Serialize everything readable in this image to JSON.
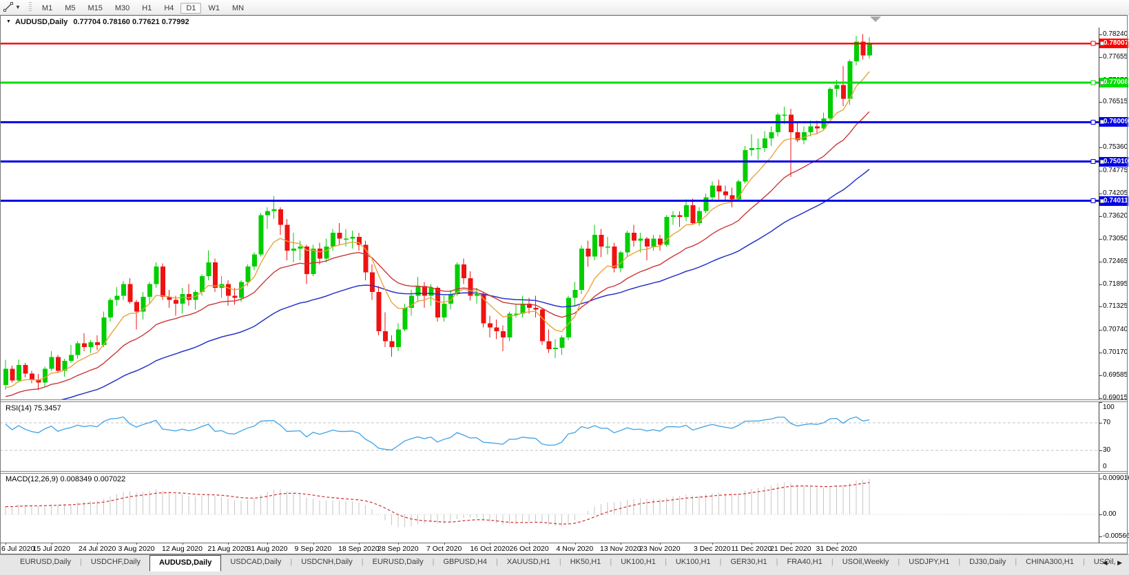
{
  "toolbar": {
    "timeframes": [
      "M1",
      "M5",
      "M15",
      "M30",
      "H1",
      "H4",
      "D1",
      "W1",
      "MN"
    ],
    "active_timeframe": "D1"
  },
  "window": {
    "symbol_label": "AUDUSD,Daily",
    "ohlc_text": "0.77704 0.78160 0.77621 0.77992"
  },
  "chart_data": {
    "type": "candlestick",
    "symbol": "AUDUSD",
    "period": "Daily",
    "ohlc_display": {
      "open": "0.77704",
      "high": "0.78160",
      "low": "0.77621",
      "close": "0.77992"
    },
    "colors": {
      "bull": "#00CE00",
      "bear": "#EF1212",
      "ma_fast": "#E8A33D",
      "ma_mid": "#CC3636",
      "ma_slow": "#2733C8",
      "hline_red": "#FF0000",
      "hline_green": "#00DD00",
      "hline_blue": "#0000E6",
      "rsi_line": "#4AA7E6",
      "macd_hist": "#C6C6C6",
      "macd_signal": "#D23B3B"
    },
    "hlines": [
      {
        "price": 0.78007,
        "label": "0.78007",
        "color": "#FF0000",
        "width": 2.5
      },
      {
        "price": 0.77008,
        "label": "0.77008",
        "color": "#00DD00",
        "width": 3
      },
      {
        "price": 0.76009,
        "label": "0.76009",
        "color": "#0000E6",
        "width": 3
      },
      {
        "price": 0.7501,
        "label": "0.75010",
        "color": "#0000E6",
        "width": 3
      },
      {
        "price": 0.74011,
        "label": "0.74011",
        "color": "#0000E6",
        "width": 3
      }
    ],
    "price_ticks": [
      "0.78240",
      "0.77655",
      "0.77070",
      "0.76515",
      "0.75930",
      "0.75360",
      "0.74775",
      "0.74205",
      "0.73620",
      "0.73050",
      "0.72465",
      "0.71895",
      "0.71325",
      "0.70740",
      "0.70170",
      "0.69585",
      "0.69015"
    ],
    "date_ticks": [
      {
        "label": "6 Jul 2020",
        "i": 0
      },
      {
        "label": "15 Jul 2020",
        "i": 7
      },
      {
        "label": "24 Jul 2020",
        "i": 14
      },
      {
        "label": "3 Aug 2020",
        "i": 20
      },
      {
        "label": "12 Aug 2020",
        "i": 27
      },
      {
        "label": "21 Aug 2020",
        "i": 34
      },
      {
        "label": "31 Aug 2020",
        "i": 40
      },
      {
        "label": "9 Sep 2020",
        "i": 47
      },
      {
        "label": "18 Sep 2020",
        "i": 54
      },
      {
        "label": "28 Sep 2020",
        "i": 60
      },
      {
        "label": "7 Oct 2020",
        "i": 67
      },
      {
        "label": "16 Oct 2020",
        "i": 74
      },
      {
        "label": "26 Oct 2020",
        "i": 80
      },
      {
        "label": "4 Nov 2020",
        "i": 87
      },
      {
        "label": "13 Nov 2020",
        "i": 94
      },
      {
        "label": "23 Nov 2020",
        "i": 100
      },
      {
        "label": "3 Dec 2020",
        "i": 108
      },
      {
        "label": "11 Dec 2020",
        "i": 114
      },
      {
        "label": "21 Dec 2020",
        "i": 120
      },
      {
        "label": "31 Dec 2020",
        "i": 127
      }
    ],
    "candles": [
      [
        0.6934,
        0.6998,
        0.6922,
        0.6975
      ],
      [
        0.6975,
        0.6983,
        0.694,
        0.6945
      ],
      [
        0.6945,
        0.6999,
        0.694,
        0.6985
      ],
      [
        0.6985,
        0.699,
        0.6953,
        0.6963
      ],
      [
        0.6963,
        0.697,
        0.6938,
        0.6948
      ],
      [
        0.6948,
        0.6962,
        0.6921,
        0.694
      ],
      [
        0.694,
        0.698,
        0.693,
        0.6975
      ],
      [
        0.6975,
        0.702,
        0.697,
        0.7005
      ],
      [
        0.7005,
        0.701,
        0.6965,
        0.697
      ],
      [
        0.697,
        0.7,
        0.6955,
        0.6995
      ],
      [
        0.6995,
        0.7035,
        0.699,
        0.701
      ],
      [
        0.701,
        0.7045,
        0.7,
        0.704
      ],
      [
        0.704,
        0.7065,
        0.702,
        0.703
      ],
      [
        0.703,
        0.7048,
        0.7015,
        0.7042
      ],
      [
        0.7042,
        0.706,
        0.7022,
        0.7035
      ],
      [
        0.7035,
        0.712,
        0.703,
        0.7105
      ],
      [
        0.7105,
        0.7155,
        0.7095,
        0.715
      ],
      [
        0.715,
        0.7182,
        0.7135,
        0.716
      ],
      [
        0.716,
        0.7198,
        0.715,
        0.719
      ],
      [
        0.719,
        0.7205,
        0.714,
        0.7145
      ],
      [
        0.7145,
        0.715,
        0.7075,
        0.712
      ],
      [
        0.712,
        0.717,
        0.71,
        0.7158
      ],
      [
        0.7158,
        0.7195,
        0.714,
        0.719
      ],
      [
        0.719,
        0.7245,
        0.718,
        0.7235
      ],
      [
        0.7235,
        0.7242,
        0.715,
        0.7158
      ],
      [
        0.7158,
        0.7175,
        0.713,
        0.715
      ],
      [
        0.715,
        0.716,
        0.711,
        0.714
      ],
      [
        0.714,
        0.718,
        0.7115,
        0.7165
      ],
      [
        0.7165,
        0.719,
        0.7135,
        0.715
      ],
      [
        0.715,
        0.7175,
        0.7125,
        0.717
      ],
      [
        0.717,
        0.7215,
        0.716,
        0.721
      ],
      [
        0.721,
        0.7276,
        0.72,
        0.7245
      ],
      [
        0.7245,
        0.7255,
        0.717,
        0.718
      ],
      [
        0.718,
        0.721,
        0.7155,
        0.719
      ],
      [
        0.719,
        0.72,
        0.7135,
        0.716
      ],
      [
        0.716,
        0.718,
        0.7138,
        0.7155
      ],
      [
        0.7155,
        0.72,
        0.7145,
        0.7195
      ],
      [
        0.7195,
        0.724,
        0.7185,
        0.7235
      ],
      [
        0.7235,
        0.727,
        0.7225,
        0.7265
      ],
      [
        0.7265,
        0.737,
        0.726,
        0.7365
      ],
      [
        0.7365,
        0.7385,
        0.733,
        0.7375
      ],
      [
        0.7375,
        0.7414,
        0.7355,
        0.738
      ],
      [
        0.738,
        0.7385,
        0.7315,
        0.734
      ],
      [
        0.734,
        0.7355,
        0.725,
        0.7275
      ],
      [
        0.7275,
        0.732,
        0.7245,
        0.728
      ],
      [
        0.728,
        0.73,
        0.725,
        0.7285
      ],
      [
        0.7285,
        0.729,
        0.719,
        0.7215
      ],
      [
        0.7215,
        0.729,
        0.721,
        0.728
      ],
      [
        0.728,
        0.7295,
        0.724,
        0.7255
      ],
      [
        0.7255,
        0.7305,
        0.7245,
        0.7285
      ],
      [
        0.7285,
        0.733,
        0.7275,
        0.732
      ],
      [
        0.732,
        0.7345,
        0.729,
        0.7305
      ],
      [
        0.7305,
        0.733,
        0.7285,
        0.7305
      ],
      [
        0.7305,
        0.7325,
        0.728,
        0.731
      ],
      [
        0.731,
        0.732,
        0.7275,
        0.729
      ],
      [
        0.729,
        0.73,
        0.72,
        0.722
      ],
      [
        0.722,
        0.724,
        0.715,
        0.717
      ],
      [
        0.717,
        0.7185,
        0.706,
        0.707
      ],
      [
        0.707,
        0.7118,
        0.703,
        0.7045
      ],
      [
        0.7045,
        0.706,
        0.7006,
        0.703
      ],
      [
        0.703,
        0.709,
        0.702,
        0.7075
      ],
      [
        0.7075,
        0.714,
        0.707,
        0.713
      ],
      [
        0.713,
        0.7175,
        0.711,
        0.716
      ],
      [
        0.716,
        0.7208,
        0.7145,
        0.7185
      ],
      [
        0.7185,
        0.7195,
        0.713,
        0.716
      ],
      [
        0.716,
        0.719,
        0.7135,
        0.718
      ],
      [
        0.718,
        0.7185,
        0.7095,
        0.7105
      ],
      [
        0.7105,
        0.716,
        0.7095,
        0.714
      ],
      [
        0.714,
        0.7175,
        0.7125,
        0.7165
      ],
      [
        0.7165,
        0.7245,
        0.716,
        0.724
      ],
      [
        0.724,
        0.7255,
        0.719,
        0.7205
      ],
      [
        0.7205,
        0.7222,
        0.7148,
        0.716
      ],
      [
        0.716,
        0.718,
        0.714,
        0.7165
      ],
      [
        0.7165,
        0.717,
        0.708,
        0.709
      ],
      [
        0.709,
        0.711,
        0.7055,
        0.708
      ],
      [
        0.708,
        0.71,
        0.705,
        0.707
      ],
      [
        0.707,
        0.7085,
        0.702,
        0.7055
      ],
      [
        0.7055,
        0.712,
        0.7045,
        0.7115
      ],
      [
        0.7115,
        0.714,
        0.7105,
        0.7115
      ],
      [
        0.7115,
        0.716,
        0.7105,
        0.714
      ],
      [
        0.714,
        0.7155,
        0.7115,
        0.713
      ],
      [
        0.713,
        0.716,
        0.7105,
        0.7125
      ],
      [
        0.7125,
        0.713,
        0.7035,
        0.7045
      ],
      [
        0.7045,
        0.7075,
        0.7015,
        0.7025
      ],
      [
        0.7025,
        0.705,
        0.7002,
        0.7028
      ],
      [
        0.7028,
        0.706,
        0.701,
        0.7055
      ],
      [
        0.7055,
        0.716,
        0.7048,
        0.7155
      ],
      [
        0.7155,
        0.7195,
        0.7135,
        0.7175
      ],
      [
        0.7175,
        0.7288,
        0.7165,
        0.728
      ],
      [
        0.728,
        0.73,
        0.7235,
        0.726
      ],
      [
        0.726,
        0.734,
        0.725,
        0.7315
      ],
      [
        0.7315,
        0.733,
        0.7258,
        0.7285
      ],
      [
        0.7285,
        0.731,
        0.7265,
        0.7285
      ],
      [
        0.7285,
        0.7295,
        0.722,
        0.723
      ],
      [
        0.723,
        0.7275,
        0.722,
        0.727
      ],
      [
        0.727,
        0.7325,
        0.726,
        0.732
      ],
      [
        0.732,
        0.734,
        0.7285,
        0.73
      ],
      [
        0.73,
        0.732,
        0.727,
        0.7305
      ],
      [
        0.7305,
        0.731,
        0.725,
        0.7285
      ],
      [
        0.7285,
        0.7315,
        0.7275,
        0.7305
      ],
      [
        0.7305,
        0.7315,
        0.7275,
        0.729
      ],
      [
        0.729,
        0.7365,
        0.7285,
        0.736
      ],
      [
        0.736,
        0.7375,
        0.734,
        0.7365
      ],
      [
        0.7365,
        0.7374,
        0.7335,
        0.736
      ],
      [
        0.736,
        0.7405,
        0.735,
        0.739
      ],
      [
        0.739,
        0.7407,
        0.734,
        0.7345
      ],
      [
        0.7345,
        0.7385,
        0.7338,
        0.7375
      ],
      [
        0.7375,
        0.742,
        0.737,
        0.741
      ],
      [
        0.741,
        0.745,
        0.74,
        0.744
      ],
      [
        0.744,
        0.7455,
        0.7405,
        0.7425
      ],
      [
        0.7425,
        0.744,
        0.74,
        0.7415
      ],
      [
        0.7415,
        0.7435,
        0.7385,
        0.7405
      ],
      [
        0.7405,
        0.7455,
        0.74,
        0.745
      ],
      [
        0.745,
        0.754,
        0.7445,
        0.753
      ],
      [
        0.753,
        0.757,
        0.7515,
        0.7535
      ],
      [
        0.7535,
        0.756,
        0.7505,
        0.7535
      ],
      [
        0.7535,
        0.7578,
        0.7525,
        0.756
      ],
      [
        0.756,
        0.759,
        0.754,
        0.7575
      ],
      [
        0.7575,
        0.7625,
        0.7565,
        0.762
      ],
      [
        0.762,
        0.764,
        0.7595,
        0.762
      ],
      [
        0.762,
        0.7635,
        0.7462,
        0.7575
      ],
      [
        0.7575,
        0.76,
        0.755,
        0.7555
      ],
      [
        0.7555,
        0.759,
        0.7545,
        0.7575
      ],
      [
        0.7575,
        0.7605,
        0.7565,
        0.759
      ],
      [
        0.759,
        0.7605,
        0.757,
        0.7585
      ],
      [
        0.7585,
        0.7625,
        0.758,
        0.761
      ],
      [
        0.761,
        0.769,
        0.7605,
        0.7685
      ],
      [
        0.7685,
        0.7708,
        0.7665,
        0.7695
      ],
      [
        0.7695,
        0.7743,
        0.7642,
        0.766
      ],
      [
        0.766,
        0.776,
        0.7645,
        0.7755
      ],
      [
        0.7755,
        0.782,
        0.7745,
        0.7805
      ],
      [
        0.7805,
        0.7824,
        0.776,
        0.777
      ],
      [
        0.77704,
        0.7816,
        0.77621,
        0.77992
      ]
    ],
    "indicators": {
      "rsi": {
        "label": "RSI(14) 75.3457",
        "period": 14,
        "value": "75.3457",
        "axis_ticks": [
          "100",
          "70",
          "30",
          "0"
        ],
        "levels": [
          70,
          30
        ]
      },
      "macd": {
        "label": "MACD(12,26,9) 0.008349 0.007022",
        "params": "12,26,9",
        "value_main": "0.008349",
        "value_signal": "0.007022",
        "axis_ticks": [
          "0.009016",
          "0.00",
          "-0.00566"
        ]
      }
    }
  },
  "tabs": {
    "items": [
      "EURUSD,Daily",
      "USDCHF,Daily",
      "AUDUSD,Daily",
      "USDCAD,Daily",
      "USDCNH,Daily",
      "EURUSD,Daily",
      "GBPUSD,H4",
      "XAUUSD,H1",
      "HK50,H1",
      "UK100,H1",
      "UK100,H1",
      "GER30,H1",
      "FRA40,H1",
      "USOil,Weekly",
      "USDJPY,H1",
      "DJ30,Daily",
      "CHINA300,H1",
      "USOil,"
    ],
    "active_index": 2,
    "scroll_left": "◀",
    "scroll_right": "▶"
  }
}
